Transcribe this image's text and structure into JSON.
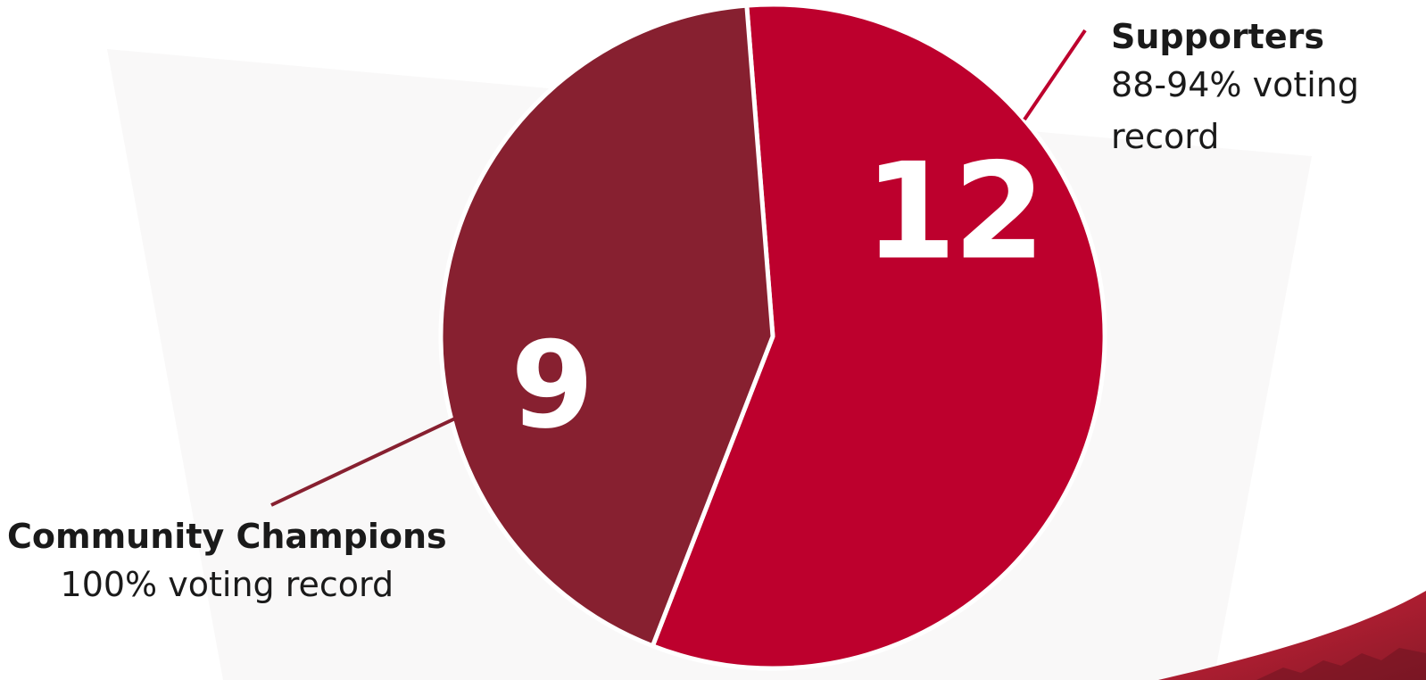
{
  "chart_data": {
    "type": "pie",
    "slices": [
      {
        "label": "Supporters",
        "value": 12,
        "description": "88-94% voting record",
        "color": "#bd002d"
      },
      {
        "label": "Community Champions",
        "value": 9,
        "description": "100% voting record",
        "color": "#872030"
      }
    ],
    "legend": "callouts"
  },
  "theme": {
    "leader_supporters": "#bd002d",
    "leader_champions": "#872030",
    "corner_accent": "#b8192f"
  }
}
